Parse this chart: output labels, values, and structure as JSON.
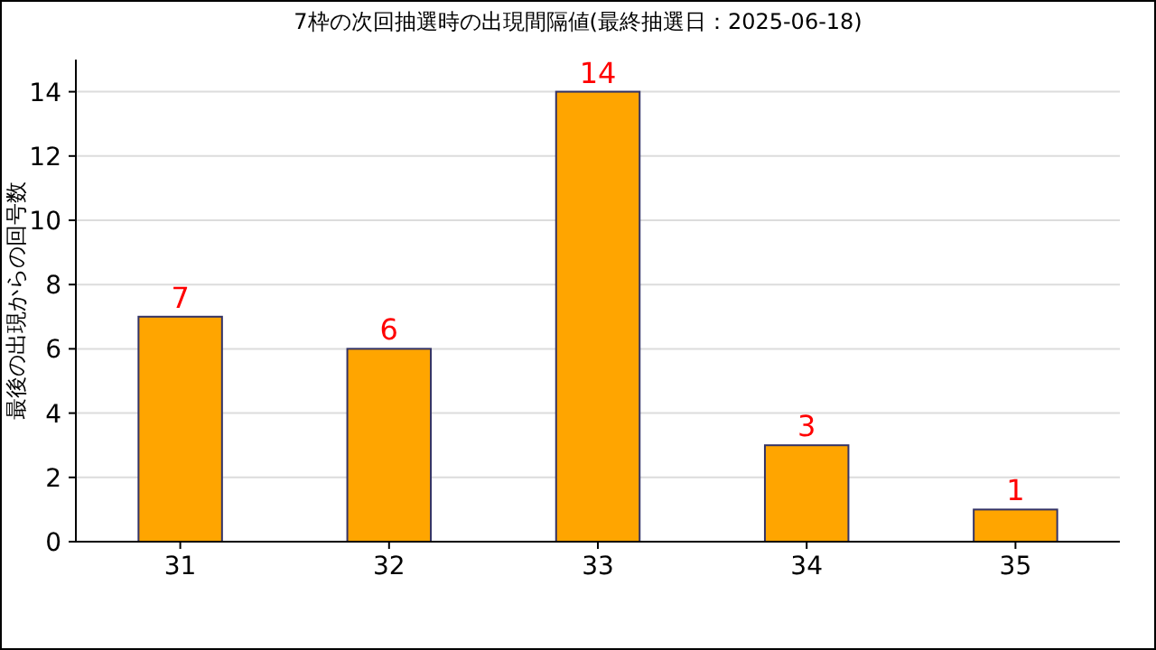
{
  "chart_data": {
    "type": "bar",
    "title": "7枠の次回抽選時の出現間隔値(最終抽選日：2025-06-18)",
    "ylabel": "最後の出現からの回号数",
    "categories": [
      "31",
      "32",
      "33",
      "34",
      "35"
    ],
    "values": [
      7,
      6,
      14,
      3,
      1
    ],
    "color": "#ffa500",
    "ylim": [
      0,
      15
    ],
    "yticks": [
      0,
      2,
      4,
      6,
      8,
      10,
      12,
      14
    ],
    "grid": "y",
    "data_labels": true
  }
}
